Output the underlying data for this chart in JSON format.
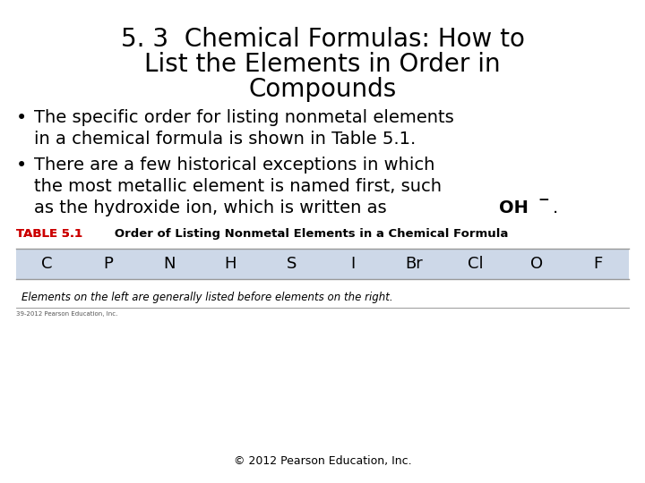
{
  "title_line1": "5. 3  Chemical Formulas: How to",
  "title_line2": "List the Elements in Order in",
  "title_line3": "Compounds",
  "title_fontsize": 20,
  "bullet1_line1": "The specific order for listing nonmetal elements",
  "bullet1_line2": "in a chemical formula is shown in Table 5.1.",
  "bullet2_line1": "There are a few historical exceptions in which",
  "bullet2_line2": "the most metallic element is named first, such",
  "bullet2_line3_normal": "as the hydroxide ion, which is written as ",
  "bullet2_line3_bold": "OH",
  "bullet2_line3_super": "−",
  "bullet2_line3_period": ".",
  "bullet_fontsize": 14,
  "table_label_bold": "TABLE 5.1",
  "table_label_normal": "   Order of Listing Nonmetal Elements in a Chemical Formula",
  "table_label_color": "#cc0000",
  "table_elements": [
    "C",
    "P",
    "N",
    "H",
    "S",
    "I",
    "Br",
    "Cl",
    "O",
    "F"
  ],
  "table_caption": "Elements on the left are generally listed before elements on the right.",
  "table_header_bg": "#cdd8e8",
  "table_row_bg": "#ffffff",
  "table_border_color": "#999999",
  "copyright": "© 2012 Pearson Education, Inc.",
  "small_copyright": "39-2012 Pearson Education, Inc.",
  "background_color": "#ffffff",
  "text_color": "#000000"
}
